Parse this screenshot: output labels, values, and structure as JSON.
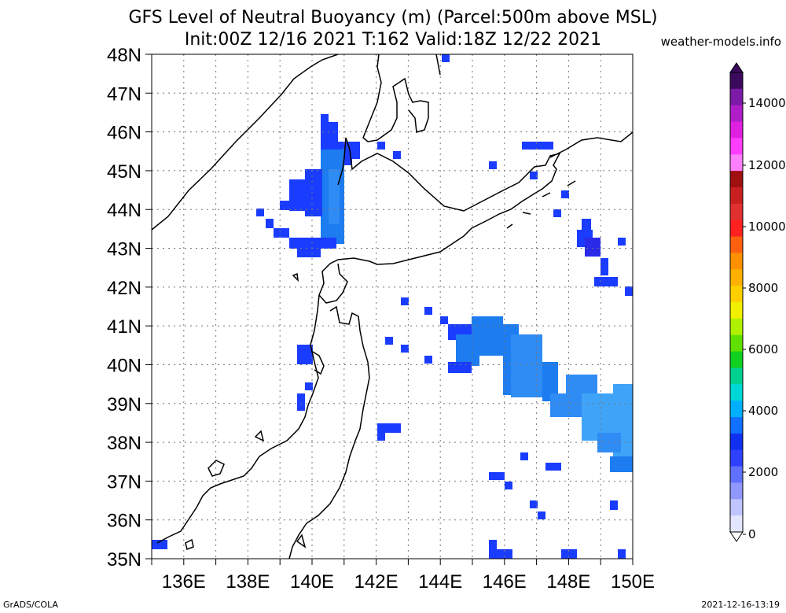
{
  "title": {
    "line1": "GFS Level of Neutral Buoyancy (m) (Parcel:500m above MSL)",
    "line2": "Init:00Z 12/16 2021 T:162 Valid:18Z 12/22 2021"
  },
  "brand": "weather-models.info",
  "footer": {
    "left": "GrADS/COLA",
    "right": "2021-12-16-13:19"
  },
  "map": {
    "lat_labels": [
      "48N",
      "47N",
      "46N",
      "45N",
      "44N",
      "43N",
      "42N",
      "41N",
      "40N",
      "39N",
      "38N",
      "37N",
      "36N",
      "35N"
    ],
    "lon_labels": [
      "136E",
      "138E",
      "140E",
      "142E",
      "144E",
      "146E",
      "148E",
      "150E"
    ],
    "lat_range": [
      35,
      48
    ],
    "lon_range": [
      135,
      150
    ],
    "grid": "dotted"
  },
  "colorbar": {
    "labels": [
      "14000",
      "12000",
      "10000",
      "8000",
      "6000",
      "4000",
      "2000",
      "0"
    ],
    "colors": [
      "#3b0a5e",
      "#7a1aa6",
      "#b01ec8",
      "#e020e0",
      "#ff3cff",
      "#ff80ff",
      "#a01010",
      "#c82020",
      "#e03030",
      "#ff2020",
      "#ff6010",
      "#ff9000",
      "#ffb000",
      "#ffd000",
      "#f0f000",
      "#b0f000",
      "#60e000",
      "#10d020",
      "#00d090",
      "#00d8d8",
      "#00b0ff",
      "#1070ff",
      "#1030f0",
      "#3040ff",
      "#6070ff",
      "#9098ff",
      "#c0c4ff",
      "#e4e6ff"
    ]
  }
}
